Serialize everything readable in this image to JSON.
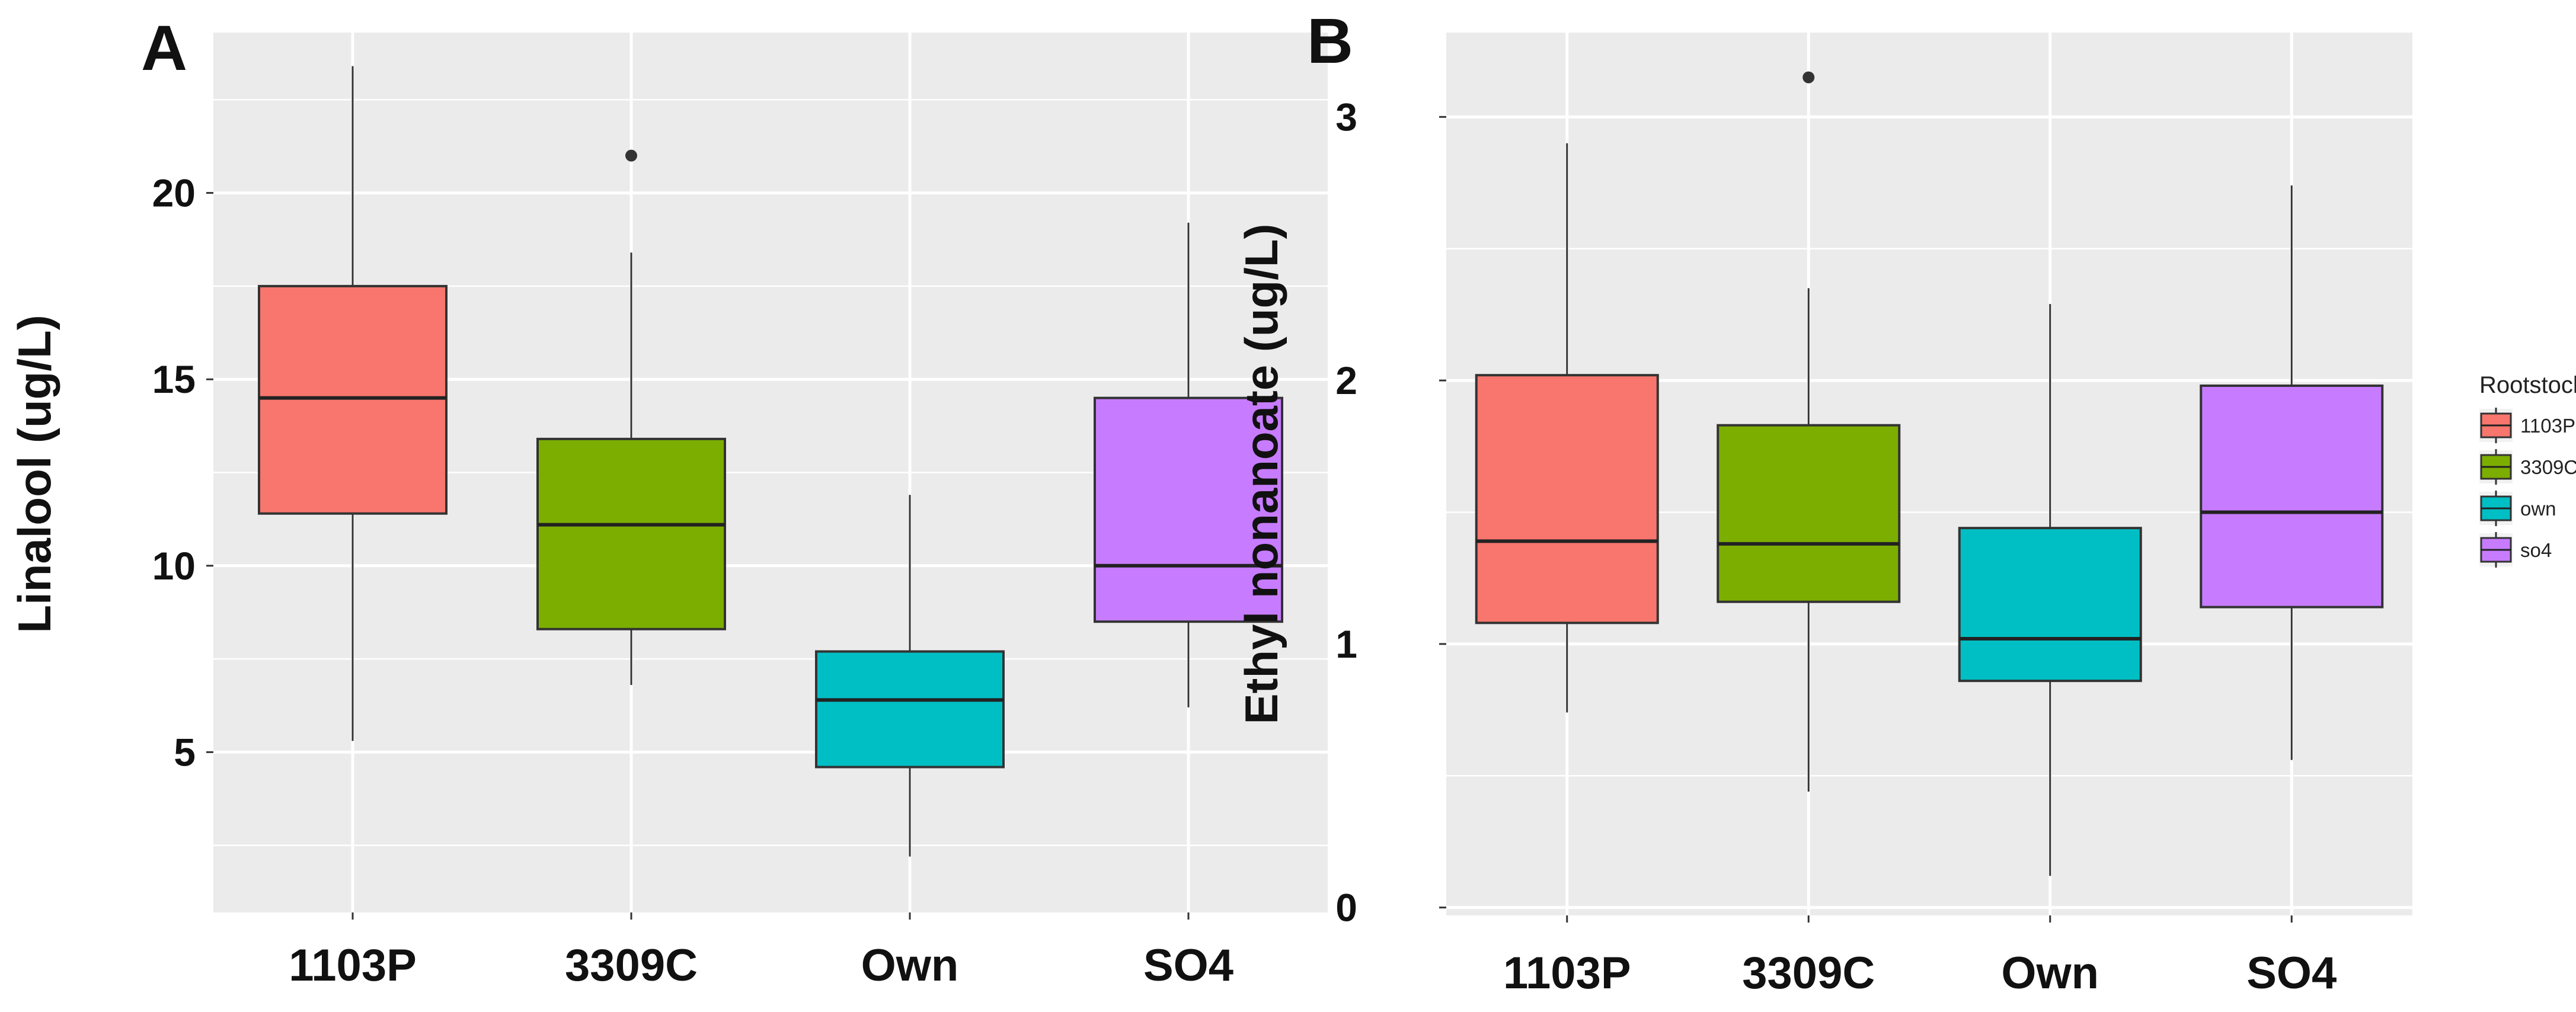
{
  "chart_data": [
    {
      "type": "box",
      "panel_label": "A",
      "title": "",
      "xlabel": "",
      "ylabel": "Linalool (ug/L)",
      "ylim": [
        0.7,
        24.3
      ],
      "yticks": [
        5,
        10,
        15,
        20
      ],
      "grid": true,
      "categories": [
        "1103P",
        "3309C",
        "Own",
        "SO4"
      ],
      "boxes": [
        {
          "category": "1103P",
          "whisker_low": 5.3,
          "q1": 11.4,
          "median": 14.5,
          "q3": 17.5,
          "whisker_high": 23.4,
          "outliers": []
        },
        {
          "category": "3309C",
          "whisker_low": 6.8,
          "q1": 8.3,
          "median": 11.1,
          "q3": 13.4,
          "whisker_high": 18.4,
          "outliers": [
            21.0
          ]
        },
        {
          "category": "Own",
          "whisker_low": 2.2,
          "q1": 4.6,
          "median": 6.4,
          "q3": 7.7,
          "whisker_high": 11.9,
          "outliers": []
        },
        {
          "category": "SO4",
          "whisker_low": 6.2,
          "q1": 8.5,
          "median": 10.0,
          "q3": 14.5,
          "whisker_high": 19.2,
          "outliers": []
        }
      ]
    },
    {
      "type": "box",
      "panel_label": "B",
      "title": "",
      "xlabel": "",
      "ylabel": "Ethyl nonanoate (ug/L)",
      "ylim": [
        -0.03,
        3.32
      ],
      "yticks": [
        0,
        1,
        2,
        3
      ],
      "grid": true,
      "categories": [
        "1103P",
        "3309C",
        "Own",
        "SO4"
      ],
      "boxes": [
        {
          "category": "1103P",
          "whisker_low": 0.74,
          "q1": 1.08,
          "median": 1.39,
          "q3": 2.02,
          "whisker_high": 2.9,
          "outliers": []
        },
        {
          "category": "3309C",
          "whisker_low": 0.44,
          "q1": 1.16,
          "median": 1.38,
          "q3": 1.83,
          "whisker_high": 2.35,
          "outliers": [
            3.15
          ]
        },
        {
          "category": "Own",
          "whisker_low": 0.12,
          "q1": 0.86,
          "median": 1.02,
          "q3": 1.44,
          "whisker_high": 2.29,
          "outliers": []
        },
        {
          "category": "SO4",
          "whisker_low": 0.56,
          "q1": 1.14,
          "median": 1.5,
          "q3": 1.98,
          "whisker_high": 2.74,
          "outliers": []
        }
      ]
    }
  ],
  "legend": {
    "title": "Rootstock",
    "placement": "right",
    "items": [
      {
        "label": "1103P",
        "color": "#F8766D"
      },
      {
        "label": "3309C",
        "color": "#7CAE00"
      },
      {
        "label": "own",
        "color": "#00BFC4"
      },
      {
        "label": "so4",
        "color": "#C77CFF"
      }
    ]
  },
  "colors": {
    "panel_background": "#EBEBEB",
    "grid": "#FFFFFF",
    "box_outline": "#333333"
  }
}
